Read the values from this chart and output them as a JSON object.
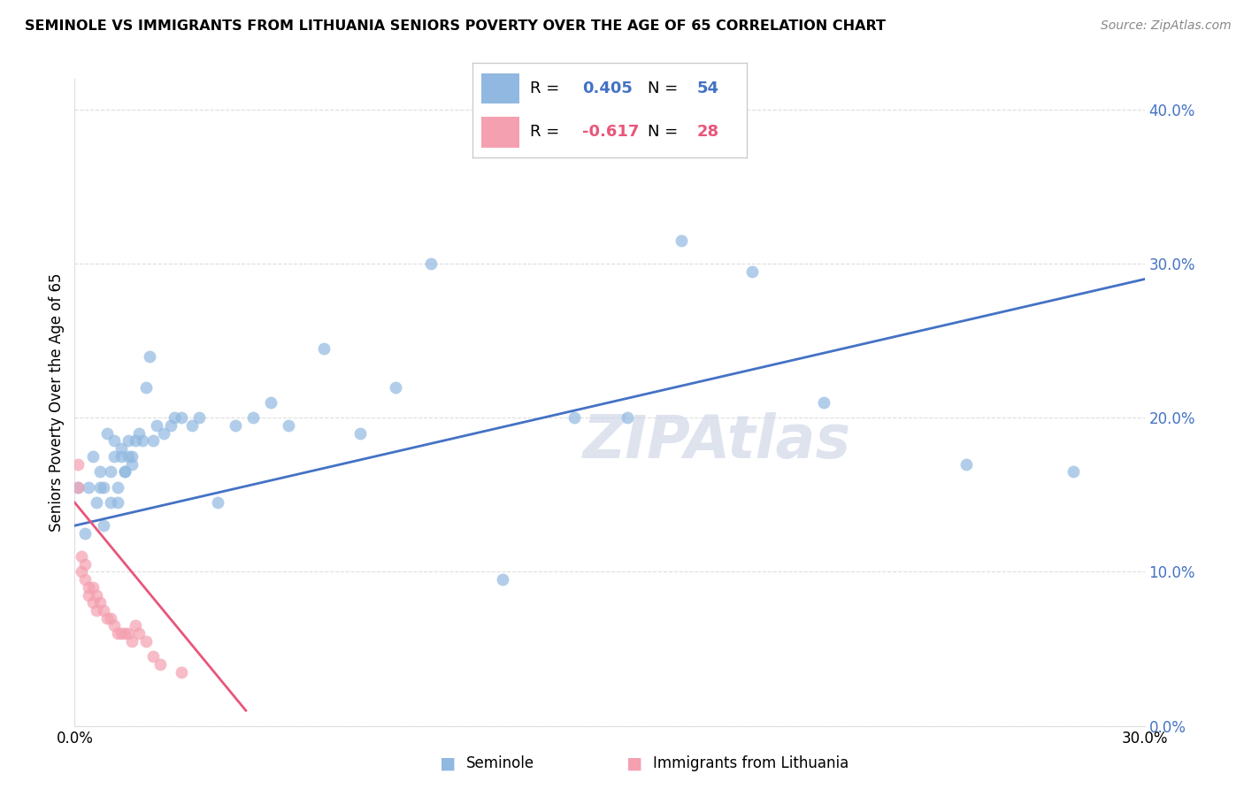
{
  "title": "SEMINOLE VS IMMIGRANTS FROM LITHUANIA SENIORS POVERTY OVER THE AGE OF 65 CORRELATION CHART",
  "source": "Source: ZipAtlas.com",
  "ylabel": "Seniors Poverty Over the Age of 65",
  "watermark": "ZIPAtlas",
  "legend1_r": "0.405",
  "legend1_n": "54",
  "legend2_r": "-0.617",
  "legend2_n": "28",
  "blue_color": "#90b8e0",
  "pink_color": "#f4a0b0",
  "blue_line_color": "#4472C4",
  "pink_line_color": "#E8567A",
  "blue_tick_color": "#4472C4",
  "xlim": [
    0.0,
    0.3
  ],
  "ylim": [
    0.0,
    0.42
  ],
  "x_tick_vals": [
    0.0,
    0.05,
    0.1,
    0.15,
    0.2,
    0.25,
    0.3
  ],
  "x_tick_labels": [
    "0.0%",
    "",
    "",
    "",
    "",
    "",
    "30.0%"
  ],
  "y_tick_vals": [
    0.0,
    0.1,
    0.2,
    0.3,
    0.4
  ],
  "y_tick_labels": [
    "0.0%",
    "10.0%",
    "20.0%",
    "30.0%",
    "40.0%"
  ],
  "bottom_x_tick_labels": [
    "0.0%",
    "",
    "",
    "",
    "",
    "",
    "30.0%"
  ],
  "seminole_x": [
    0.001,
    0.003,
    0.004,
    0.005,
    0.006,
    0.007,
    0.007,
    0.008,
    0.008,
    0.009,
    0.01,
    0.01,
    0.011,
    0.011,
    0.012,
    0.012,
    0.013,
    0.013,
    0.014,
    0.014,
    0.015,
    0.015,
    0.016,
    0.016,
    0.017,
    0.018,
    0.019,
    0.02,
    0.021,
    0.022,
    0.023,
    0.025,
    0.027,
    0.028,
    0.03,
    0.033,
    0.035,
    0.04,
    0.045,
    0.05,
    0.055,
    0.06,
    0.07,
    0.08,
    0.09,
    0.1,
    0.12,
    0.14,
    0.155,
    0.17,
    0.19,
    0.21,
    0.25,
    0.28
  ],
  "seminole_y": [
    0.155,
    0.125,
    0.155,
    0.175,
    0.145,
    0.155,
    0.165,
    0.13,
    0.155,
    0.19,
    0.145,
    0.165,
    0.185,
    0.175,
    0.155,
    0.145,
    0.18,
    0.175,
    0.165,
    0.165,
    0.185,
    0.175,
    0.17,
    0.175,
    0.185,
    0.19,
    0.185,
    0.22,
    0.24,
    0.185,
    0.195,
    0.19,
    0.195,
    0.2,
    0.2,
    0.195,
    0.2,
    0.145,
    0.195,
    0.2,
    0.21,
    0.195,
    0.245,
    0.19,
    0.22,
    0.3,
    0.095,
    0.2,
    0.2,
    0.315,
    0.295,
    0.21,
    0.17,
    0.165
  ],
  "lithuania_x": [
    0.001,
    0.001,
    0.002,
    0.002,
    0.003,
    0.003,
    0.004,
    0.004,
    0.005,
    0.005,
    0.006,
    0.006,
    0.007,
    0.008,
    0.009,
    0.01,
    0.011,
    0.012,
    0.013,
    0.014,
    0.015,
    0.016,
    0.017,
    0.018,
    0.02,
    0.022,
    0.024,
    0.03
  ],
  "lithuania_y": [
    0.155,
    0.17,
    0.1,
    0.11,
    0.095,
    0.105,
    0.085,
    0.09,
    0.08,
    0.09,
    0.075,
    0.085,
    0.08,
    0.075,
    0.07,
    0.07,
    0.065,
    0.06,
    0.06,
    0.06,
    0.06,
    0.055,
    0.065,
    0.06,
    0.055,
    0.045,
    0.04,
    0.035
  ],
  "blue_trend_x": [
    0.0,
    0.3
  ],
  "blue_trend_y": [
    0.13,
    0.29
  ],
  "pink_trend_x": [
    0.0,
    0.048
  ],
  "pink_trend_y": [
    0.145,
    0.01
  ]
}
